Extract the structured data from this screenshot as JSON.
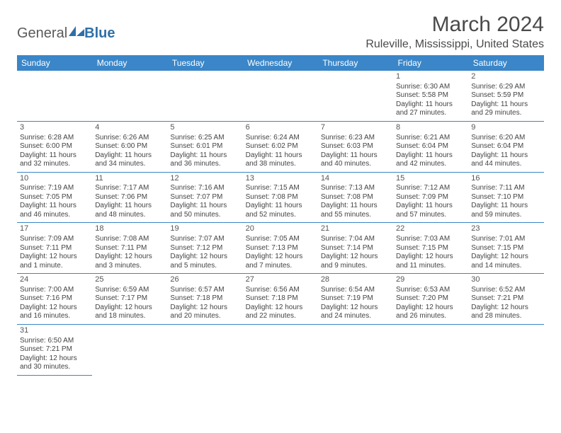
{
  "logo": {
    "general": "General",
    "blue": "Blue"
  },
  "title": "March 2024",
  "location": "Ruleville, Mississippi, United States",
  "colors": {
    "header_bg": "#3a86c8",
    "header_text": "#ffffff",
    "border": "#3a86c8",
    "text": "#444444"
  },
  "day_headers": [
    "Sunday",
    "Monday",
    "Tuesday",
    "Wednesday",
    "Thursday",
    "Friday",
    "Saturday"
  ],
  "weeks": [
    [
      null,
      null,
      null,
      null,
      null,
      {
        "n": "1",
        "sr": "Sunrise: 6:30 AM",
        "ss": "Sunset: 5:58 PM",
        "d1": "Daylight: 11 hours",
        "d2": "and 27 minutes."
      },
      {
        "n": "2",
        "sr": "Sunrise: 6:29 AM",
        "ss": "Sunset: 5:59 PM",
        "d1": "Daylight: 11 hours",
        "d2": "and 29 minutes."
      }
    ],
    [
      {
        "n": "3",
        "sr": "Sunrise: 6:28 AM",
        "ss": "Sunset: 6:00 PM",
        "d1": "Daylight: 11 hours",
        "d2": "and 32 minutes."
      },
      {
        "n": "4",
        "sr": "Sunrise: 6:26 AM",
        "ss": "Sunset: 6:00 PM",
        "d1": "Daylight: 11 hours",
        "d2": "and 34 minutes."
      },
      {
        "n": "5",
        "sr": "Sunrise: 6:25 AM",
        "ss": "Sunset: 6:01 PM",
        "d1": "Daylight: 11 hours",
        "d2": "and 36 minutes."
      },
      {
        "n": "6",
        "sr": "Sunrise: 6:24 AM",
        "ss": "Sunset: 6:02 PM",
        "d1": "Daylight: 11 hours",
        "d2": "and 38 minutes."
      },
      {
        "n": "7",
        "sr": "Sunrise: 6:23 AM",
        "ss": "Sunset: 6:03 PM",
        "d1": "Daylight: 11 hours",
        "d2": "and 40 minutes."
      },
      {
        "n": "8",
        "sr": "Sunrise: 6:21 AM",
        "ss": "Sunset: 6:04 PM",
        "d1": "Daylight: 11 hours",
        "d2": "and 42 minutes."
      },
      {
        "n": "9",
        "sr": "Sunrise: 6:20 AM",
        "ss": "Sunset: 6:04 PM",
        "d1": "Daylight: 11 hours",
        "d2": "and 44 minutes."
      }
    ],
    [
      {
        "n": "10",
        "sr": "Sunrise: 7:19 AM",
        "ss": "Sunset: 7:05 PM",
        "d1": "Daylight: 11 hours",
        "d2": "and 46 minutes."
      },
      {
        "n": "11",
        "sr": "Sunrise: 7:17 AM",
        "ss": "Sunset: 7:06 PM",
        "d1": "Daylight: 11 hours",
        "d2": "and 48 minutes."
      },
      {
        "n": "12",
        "sr": "Sunrise: 7:16 AM",
        "ss": "Sunset: 7:07 PM",
        "d1": "Daylight: 11 hours",
        "d2": "and 50 minutes."
      },
      {
        "n": "13",
        "sr": "Sunrise: 7:15 AM",
        "ss": "Sunset: 7:08 PM",
        "d1": "Daylight: 11 hours",
        "d2": "and 52 minutes."
      },
      {
        "n": "14",
        "sr": "Sunrise: 7:13 AM",
        "ss": "Sunset: 7:08 PM",
        "d1": "Daylight: 11 hours",
        "d2": "and 55 minutes."
      },
      {
        "n": "15",
        "sr": "Sunrise: 7:12 AM",
        "ss": "Sunset: 7:09 PM",
        "d1": "Daylight: 11 hours",
        "d2": "and 57 minutes."
      },
      {
        "n": "16",
        "sr": "Sunrise: 7:11 AM",
        "ss": "Sunset: 7:10 PM",
        "d1": "Daylight: 11 hours",
        "d2": "and 59 minutes."
      }
    ],
    [
      {
        "n": "17",
        "sr": "Sunrise: 7:09 AM",
        "ss": "Sunset: 7:11 PM",
        "d1": "Daylight: 12 hours",
        "d2": "and 1 minute."
      },
      {
        "n": "18",
        "sr": "Sunrise: 7:08 AM",
        "ss": "Sunset: 7:11 PM",
        "d1": "Daylight: 12 hours",
        "d2": "and 3 minutes."
      },
      {
        "n": "19",
        "sr": "Sunrise: 7:07 AM",
        "ss": "Sunset: 7:12 PM",
        "d1": "Daylight: 12 hours",
        "d2": "and 5 minutes."
      },
      {
        "n": "20",
        "sr": "Sunrise: 7:05 AM",
        "ss": "Sunset: 7:13 PM",
        "d1": "Daylight: 12 hours",
        "d2": "and 7 minutes."
      },
      {
        "n": "21",
        "sr": "Sunrise: 7:04 AM",
        "ss": "Sunset: 7:14 PM",
        "d1": "Daylight: 12 hours",
        "d2": "and 9 minutes."
      },
      {
        "n": "22",
        "sr": "Sunrise: 7:03 AM",
        "ss": "Sunset: 7:15 PM",
        "d1": "Daylight: 12 hours",
        "d2": "and 11 minutes."
      },
      {
        "n": "23",
        "sr": "Sunrise: 7:01 AM",
        "ss": "Sunset: 7:15 PM",
        "d1": "Daylight: 12 hours",
        "d2": "and 14 minutes."
      }
    ],
    [
      {
        "n": "24",
        "sr": "Sunrise: 7:00 AM",
        "ss": "Sunset: 7:16 PM",
        "d1": "Daylight: 12 hours",
        "d2": "and 16 minutes."
      },
      {
        "n": "25",
        "sr": "Sunrise: 6:59 AM",
        "ss": "Sunset: 7:17 PM",
        "d1": "Daylight: 12 hours",
        "d2": "and 18 minutes."
      },
      {
        "n": "26",
        "sr": "Sunrise: 6:57 AM",
        "ss": "Sunset: 7:18 PM",
        "d1": "Daylight: 12 hours",
        "d2": "and 20 minutes."
      },
      {
        "n": "27",
        "sr": "Sunrise: 6:56 AM",
        "ss": "Sunset: 7:18 PM",
        "d1": "Daylight: 12 hours",
        "d2": "and 22 minutes."
      },
      {
        "n": "28",
        "sr": "Sunrise: 6:54 AM",
        "ss": "Sunset: 7:19 PM",
        "d1": "Daylight: 12 hours",
        "d2": "and 24 minutes."
      },
      {
        "n": "29",
        "sr": "Sunrise: 6:53 AM",
        "ss": "Sunset: 7:20 PM",
        "d1": "Daylight: 12 hours",
        "d2": "and 26 minutes."
      },
      {
        "n": "30",
        "sr": "Sunrise: 6:52 AM",
        "ss": "Sunset: 7:21 PM",
        "d1": "Daylight: 12 hours",
        "d2": "and 28 minutes."
      }
    ],
    [
      {
        "n": "31",
        "sr": "Sunrise: 6:50 AM",
        "ss": "Sunset: 7:21 PM",
        "d1": "Daylight: 12 hours",
        "d2": "and 30 minutes."
      },
      null,
      null,
      null,
      null,
      null,
      null
    ]
  ]
}
